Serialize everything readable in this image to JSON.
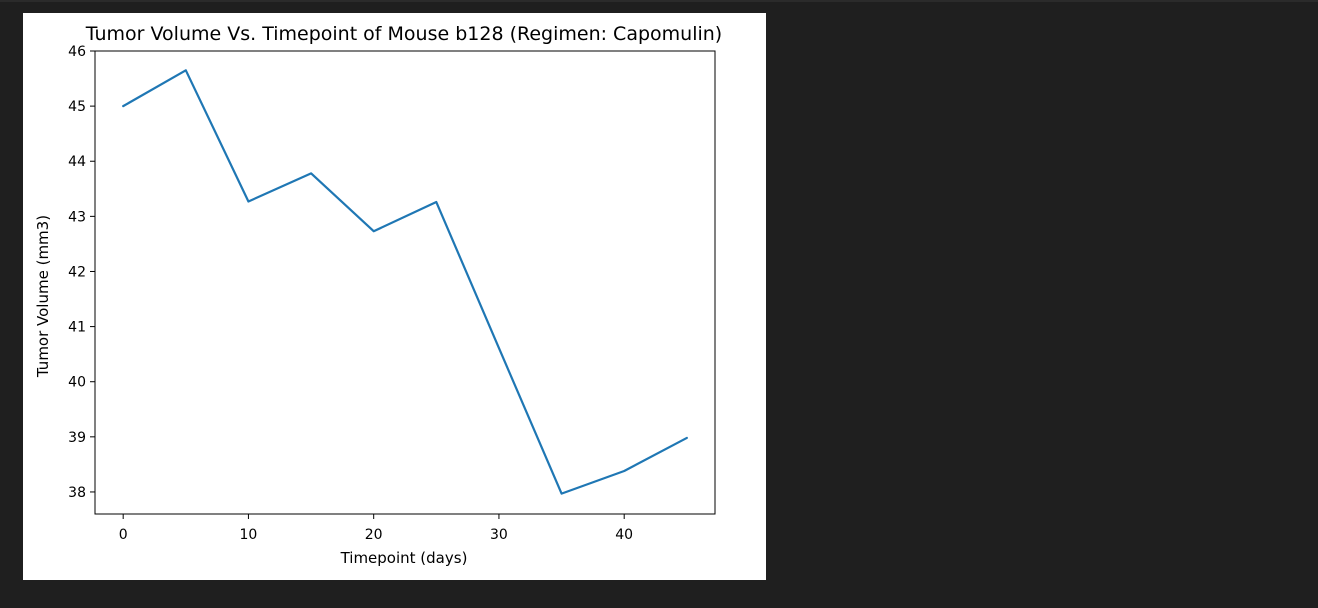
{
  "chart_data": {
    "type": "line",
    "title": "Tumor Volume Vs. Timepoint of Mouse b128 (Regimen: Capomulin)",
    "xlabel": "Timepoint (days)",
    "ylabel": "Tumor Volume (mm3)",
    "x": [
      0,
      5,
      10,
      15,
      20,
      25,
      30,
      35,
      40,
      45
    ],
    "series": [
      {
        "values": [
          45.0,
          45.65,
          43.27,
          43.78,
          42.73,
          43.26,
          40.61,
          37.97,
          38.38,
          38.98
        ],
        "color": "#1f77b4"
      }
    ],
    "xlim": [
      -2.25,
      47.25
    ],
    "ylim": [
      37.6,
      46.0
    ],
    "xticks": [
      0,
      10,
      20,
      30,
      40
    ],
    "yticks": [
      38,
      39,
      40,
      41,
      42,
      43,
      44,
      45,
      46
    ],
    "grid": false
  }
}
